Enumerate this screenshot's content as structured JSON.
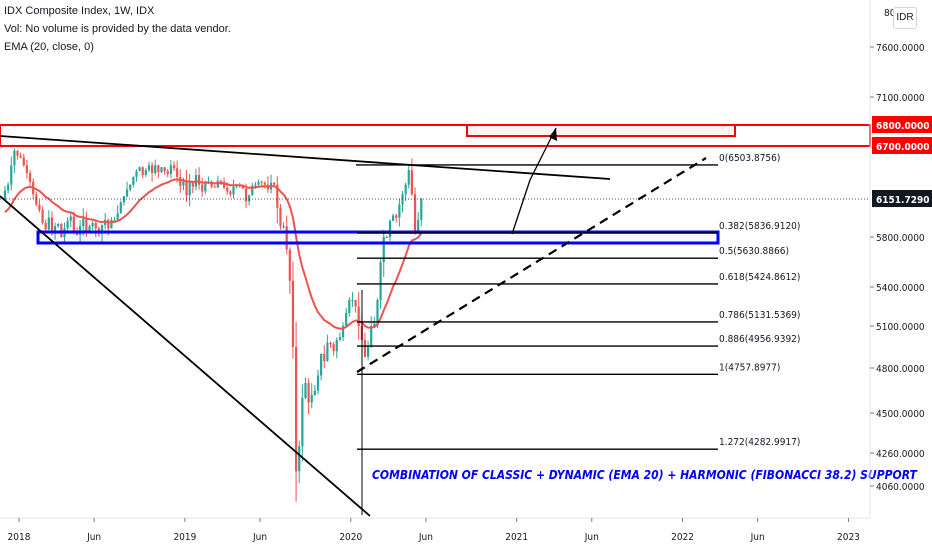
{
  "legend": {
    "line1": "IDX Composite Index, 1W, IDX",
    "line2": "Vol: No volume is provided by the data vendor.",
    "line3": "EMA (20, close, 0)"
  },
  "currency_button": "IDR",
  "colors": {
    "up": "#26a69a",
    "down": "#ef5350",
    "ema": "#ef5350",
    "zone_red": "#ff0000",
    "zone_blue": "#0000ff",
    "annotation": "#0000ff",
    "price_tag": "#131722"
  },
  "chart_data": {
    "type": "candlestick",
    "x_ticks": [
      "2018",
      "Jun",
      "2019",
      "Jun",
      "2020",
      "Jun",
      "2021",
      "Jun",
      "2022",
      "Jun",
      "2023"
    ],
    "y_ticks": [
      4060,
      4260,
      4500,
      4800,
      5100,
      5400,
      5800,
      7100,
      7600
    ],
    "y_range": [
      3900,
      8000
    ],
    "last_price": "6151.7290",
    "price_tags": [
      "6800.0000",
      "6700.0000"
    ],
    "resistance_zone": [
      6700,
      6800
    ],
    "support_zone": [
      5750,
      5836.912
    ],
    "fibonacci_levels": [
      {
        "label": "0(6503.8756)",
        "value": 6503.8756
      },
      {
        "label": "0.382(5836.9120)",
        "value": 5836.912
      },
      {
        "label": "0.5(5630.8866)",
        "value": 5630.8866
      },
      {
        "label": "0.618(5424.8612)",
        "value": 5424.8612
      },
      {
        "label": "0.786(5131.5369)",
        "value": 5131.5369
      },
      {
        "label": "0.886(4956.9392)",
        "value": 4956.9392
      },
      {
        "label": "1(4757.8977)",
        "value": 4757.8977
      },
      {
        "label": "1.272(4282.9917)",
        "value": 4282.9917
      }
    ],
    "annotation": "COMBINATION OF CLASSIC + DYNAMIC (EMA 20) + HARMONIC (FIBONACCI 38.2) SUPPORT",
    "grid": false,
    "ohlc_weekly_closes_2018_2021": [
      6240,
      6300,
      6500,
      6650,
      6600,
      6580,
      6500,
      6420,
      6330,
      6200,
      6100,
      6050,
      5930,
      5870,
      5980,
      5840,
      5900,
      5920,
      5800,
      5880,
      5950,
      5990,
      5850,
      5820,
      5900,
      5970,
      5860,
      5900,
      5930,
      5880,
      5830,
      5910,
      5960,
      5880,
      5960,
      5960,
      6020,
      6120,
      6180,
      6250,
      6300,
      6380,
      6440,
      6480,
      6400,
      6450,
      6500,
      6420,
      6500,
      6430,
      6480,
      6440,
      6410,
      6500,
      6470,
      6380,
      6290,
      6340,
      6190,
      6330,
      6280,
      6400,
      6300,
      6230,
      6320,
      6330,
      6280,
      6270,
      6340,
      6330,
      6270,
      6230,
      6200,
      6280,
      6300,
      6290,
      6260,
      6130,
      6190,
      6290,
      6300,
      6330,
      6320,
      6300,
      6250,
      6320,
      6300,
      6070,
      5900,
      5900,
      5700,
      5450,
      4950,
      4150,
      4300,
      4600,
      4700,
      4570,
      4620,
      4650,
      4750,
      4900,
      4850,
      4980,
      4970,
      4920,
      5000,
      5020,
      5100,
      5200,
      5300,
      5300,
      5250,
      5100,
      5000,
      4880,
      4960,
      5100,
      5120,
      5300,
      5600,
      5800,
      5800,
      5950,
      6000,
      5980,
      6100,
      6200,
      6300,
      6450,
      6200,
      5860,
      5960,
      6150
    ]
  }
}
